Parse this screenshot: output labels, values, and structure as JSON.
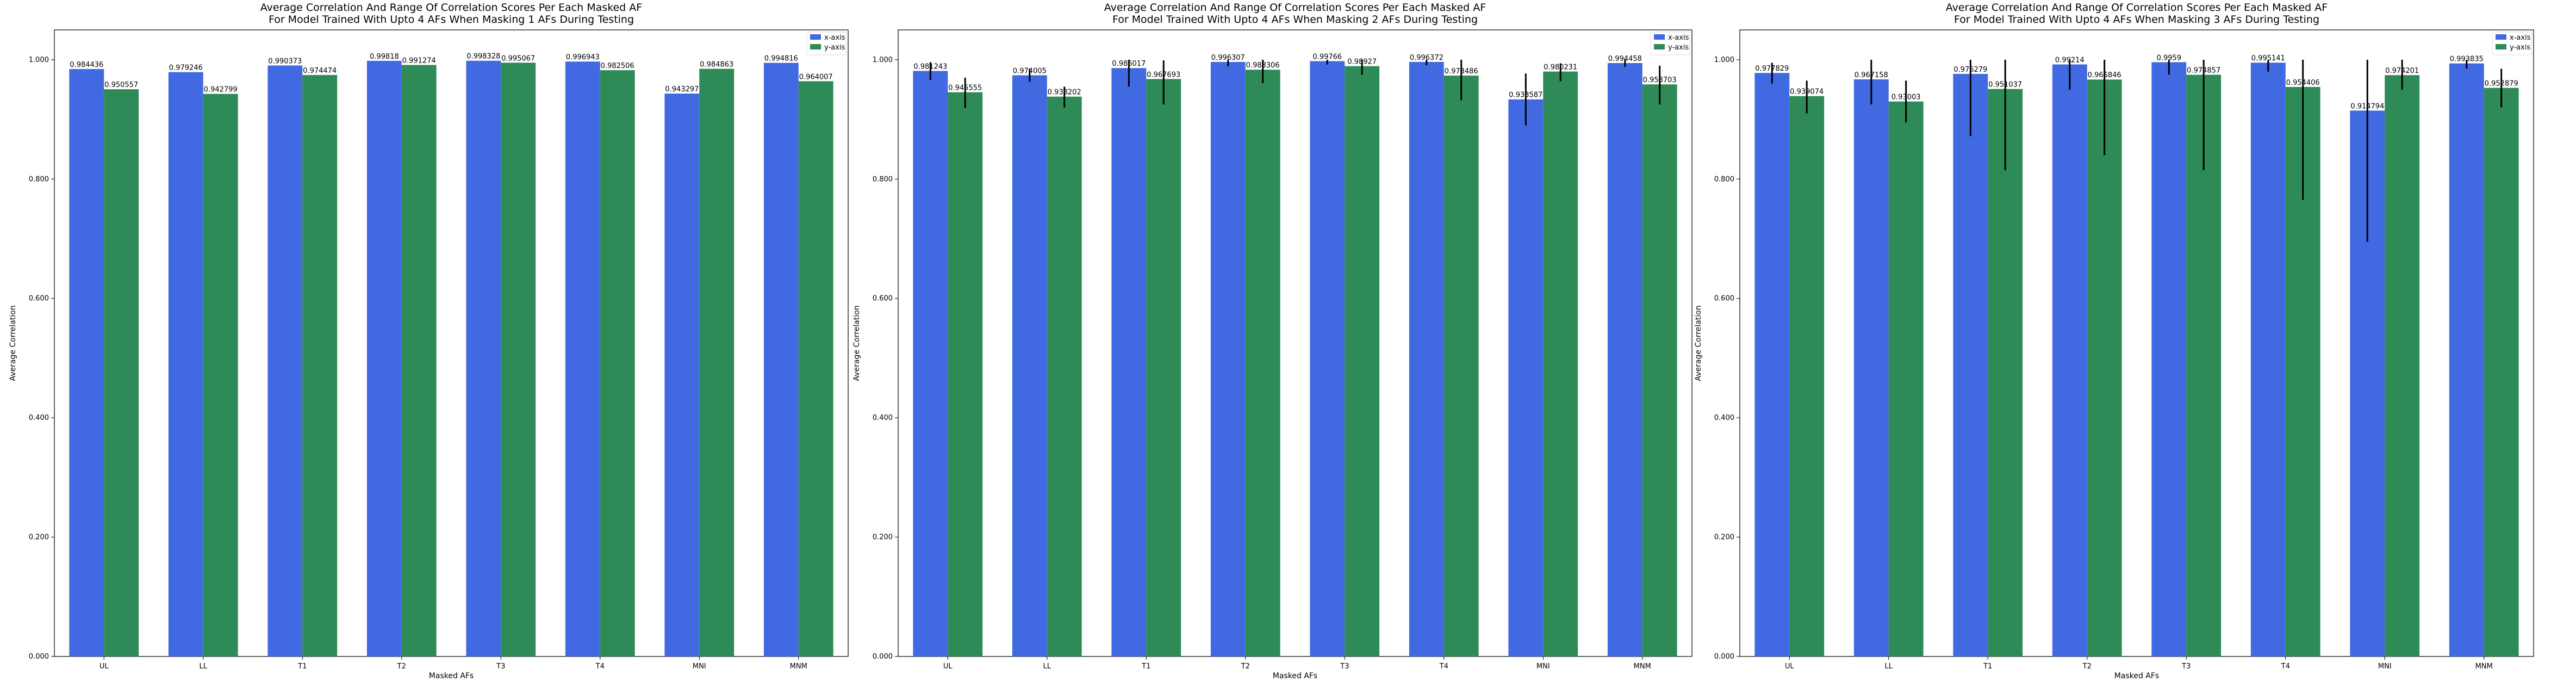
{
  "colors": {
    "x_axis": "#4169e1",
    "y_axis": "#2e8b57"
  },
  "chart_data": [
    {
      "type": "bar",
      "title": "Average Correlation And Range Of Correlation Scores Per Each Masked AF\nFor Model Trained With Upto 4 AFs When Masking 1 AFs During Testing",
      "xlabel": "Masked AFs",
      "ylabel": "Average Correlation",
      "ylim": [
        0,
        1.05
      ],
      "yticks": [
        0,
        0.2,
        0.4,
        0.6,
        0.8,
        1.0
      ],
      "ytick_labels": [
        "0.000",
        "0.200",
        "0.400",
        "0.600",
        "0.800",
        "1.000"
      ],
      "legend_placement": "top-right",
      "categories": [
        "UL",
        "LL",
        "T1",
        "T2",
        "T3",
        "T4",
        "MNI",
        "MNM"
      ],
      "series": [
        {
          "name": "x-axis",
          "color": "#4169e1",
          "values": [
            0.984436,
            0.979246,
            0.990373,
            0.99818,
            0.998328,
            0.996943,
            0.943297,
            0.994816
          ],
          "labels": [
            "0.984436",
            "0.979246",
            "0.990373",
            "0.99818",
            "0.998328",
            "0.996943",
            "0.943297",
            "0.994816"
          ],
          "err_low": [
            0.984436,
            0.979246,
            0.990373,
            0.99818,
            0.998328,
            0.996943,
            0.943297,
            0.994816
          ],
          "err_high": [
            0.984436,
            0.979246,
            0.990373,
            0.99818,
            0.998328,
            0.996943,
            0.943297,
            0.994816
          ]
        },
        {
          "name": "y-axis",
          "color": "#2e8b57",
          "values": [
            0.950557,
            0.942799,
            0.974474,
            0.991274,
            0.995067,
            0.982506,
            0.984863,
            0.964007
          ],
          "labels": [
            "0.950557",
            "0.942799",
            "0.974474",
            "0.991274",
            "0.995067",
            "0.982506",
            "0.984863",
            "0.964007"
          ],
          "err_low": [
            0.950557,
            0.942799,
            0.974474,
            0.991274,
            0.995067,
            0.982506,
            0.984863,
            0.964007
          ],
          "err_high": [
            0.950557,
            0.942799,
            0.974474,
            0.991274,
            0.995067,
            0.982506,
            0.984863,
            0.964007
          ]
        }
      ]
    },
    {
      "type": "bar",
      "title": "Average Correlation And Range Of Correlation Scores Per Each Masked AF\nFor Model Trained With Upto 4 AFs When Masking 2 AFs During Testing",
      "xlabel": "Masked AFs",
      "ylabel": "Average Correlation",
      "ylim": [
        0,
        1.05
      ],
      "yticks": [
        0,
        0.2,
        0.4,
        0.6,
        0.8,
        1.0
      ],
      "ytick_labels": [
        "0.000",
        "0.200",
        "0.400",
        "0.600",
        "0.800",
        "1.000"
      ],
      "legend_placement": "top-right",
      "categories": [
        "UL",
        "LL",
        "T1",
        "T2",
        "T3",
        "T4",
        "MNI",
        "MNM"
      ],
      "series": [
        {
          "name": "x-axis",
          "color": "#4169e1",
          "values": [
            0.981243,
            0.974005,
            0.986017,
            0.996307,
            0.99766,
            0.996372,
            0.933587,
            0.994458
          ],
          "labels": [
            "0.981243",
            "0.974005",
            "0.986017",
            "0.996307",
            "0.99766",
            "0.996372",
            "0.933587",
            "0.994458"
          ],
          "err_low": [
            0.966,
            0.963,
            0.955,
            0.989,
            0.992,
            0.991,
            0.89,
            0.988
          ],
          "err_high": [
            0.996,
            0.985,
            1.0,
            1.0,
            1.0,
            1.0,
            0.977,
            1.0
          ]
        },
        {
          "name": "y-axis",
          "color": "#2e8b57",
          "values": [
            0.945555,
            0.938202,
            0.967693,
            0.983306,
            0.98927,
            0.973486,
            0.980231,
            0.958703
          ],
          "labels": [
            "0.945555",
            "0.938202",
            "0.967693",
            "0.983306",
            "0.98927",
            "0.973486",
            "0.980231",
            "0.958703"
          ],
          "err_low": [
            0.919,
            0.92,
            0.925,
            0.961,
            0.975,
            0.932,
            0.964,
            0.925
          ],
          "err_high": [
            0.97,
            0.955,
            0.999,
            1.0,
            1.0,
            1.0,
            0.994,
            0.99
          ]
        }
      ]
    },
    {
      "type": "bar",
      "title": "Average Correlation And Range Of Correlation Scores Per Each Masked AF\nFor Model Trained With Upto 4 AFs When Masking 3 AFs During Testing",
      "xlabel": "Masked AFs",
      "ylabel": "Average Correlation",
      "ylim": [
        0,
        1.05
      ],
      "yticks": [
        0,
        0.2,
        0.4,
        0.6,
        0.8,
        1.0
      ],
      "ytick_labels": [
        "0.000",
        "0.200",
        "0.400",
        "0.600",
        "0.800",
        "1.000"
      ],
      "legend_placement": "top-right",
      "categories": [
        "UL",
        "LL",
        "T1",
        "T2",
        "T3",
        "T4",
        "MNI",
        "MNM"
      ],
      "series": [
        {
          "name": "x-axis",
          "color": "#4169e1",
          "values": [
            0.977829,
            0.967158,
            0.976279,
            0.99214,
            0.9959,
            0.995141,
            0.914794,
            0.993835
          ],
          "labels": [
            "0.977829",
            "0.967158",
            "0.976279",
            "0.99214",
            "0.9959",
            "0.995141",
            "0.914794",
            "0.993835"
          ],
          "err_low": [
            0.96,
            0.925,
            0.872,
            0.95,
            0.975,
            0.98,
            0.695,
            0.985
          ],
          "err_high": [
            0.995,
            1.0,
            1.0,
            1.0,
            1.0,
            1.0,
            1.0,
            1.0
          ]
        },
        {
          "name": "y-axis",
          "color": "#2e8b57",
          "values": [
            0.939074,
            0.93003,
            0.951037,
            0.966846,
            0.974857,
            0.954406,
            0.974201,
            0.952879
          ],
          "labels": [
            "0.939074",
            "0.93003",
            "0.951037",
            "0.966846",
            "0.974857",
            "0.954406",
            "0.974201",
            "0.952879"
          ],
          "err_low": [
            0.91,
            0.895,
            0.815,
            0.84,
            0.815,
            0.765,
            0.95,
            0.92
          ],
          "err_high": [
            0.965,
            0.965,
            1.0,
            1.0,
            1.0,
            1.0,
            1.0,
            0.985
          ]
        }
      ]
    }
  ]
}
